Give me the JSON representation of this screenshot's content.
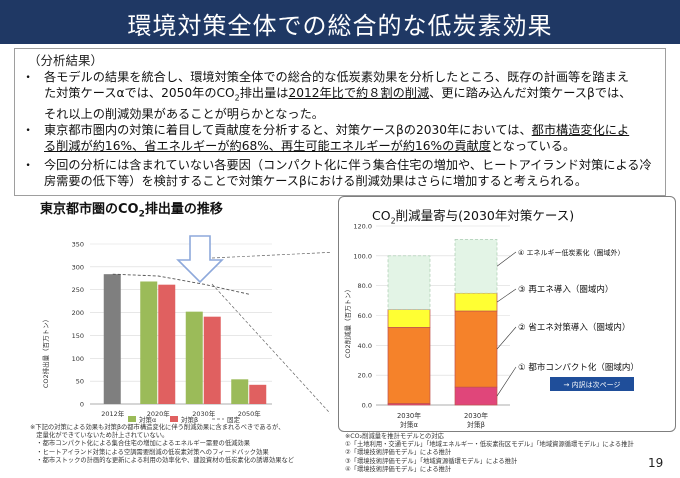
{
  "header": {
    "title": "環境対策全体での総合的な低炭素効果"
  },
  "summary": {
    "label": "（分析結果）",
    "bullet_symbol": "・",
    "b1": {
      "l1": "各モデルの結果を統合し、環境対策全体での総合的な低炭素効果を分析したところ、既存の計画等を踏まえ",
      "l2a": "た対策ケースαでは、2050年のCO",
      "l2sub": "2",
      "l2b": "排出量は",
      "l2ul": "2012年比で約８割の削減",
      "l2c": "、更に踏み込んだ対策ケースβでは、",
      "l3": "それ以上の削減効果があることが明らかとなった。"
    },
    "b2": {
      "l1a": "東京都市圏内の対策に着目して貢献度を分析すると、対策ケースβの2030年においては、",
      "l1ul": "都市構造変化によ",
      "l2ul": "る削減が約16%、省エネルギーが約68%、再生可能エネルギーが約16%の貢献度",
      "l2b": "となっている。"
    },
    "b3": {
      "l1": "今回の分析には含まれていない各要因（コンパクト化に伴う集合住宅の増加や、ヒートアイランド対策による冷",
      "l2": "房需要の低下等）を検討することで対策ケースβにおける削減効果はさらに増加すると考えられる。"
    }
  },
  "left_chart": {
    "title_a": "東京都市圏のCO",
    "title_sub": "2",
    "title_b": "排出量の推移",
    "ylabel": "CO2排出量（百万トン）",
    "legend": [
      "対策α",
      "対策β",
      "固定"
    ]
  },
  "right_chart": {
    "title_a": "CO",
    "title_sub": "2",
    "title_b": "削減量寄与(2030年対策ケース)",
    "ylabel": "CO2削減量（百万トン）",
    "cat1_line1": "2030年",
    "cat1_line2": "対策α",
    "cat2_line1": "2030年",
    "cat2_line2": "対策β",
    "annotations": [
      "④ エネルギー低炭素化（圏域外）",
      "③  再エネ導入（圏域内）",
      "②  省エネ対策導入（圏域内）",
      "①  都市コンパクト化（圏域内）"
    ],
    "detail_button": "→ 内訳は次ページ"
  },
  "chart_data": [
    {
      "type": "bar",
      "title": "東京都市圏のCO2排出量の推移",
      "ylabel": "CO2排出量（百万トン）",
      "ylim": [
        0,
        350
      ],
      "yticks": [
        0,
        50,
        100,
        150,
        200,
        250,
        300,
        350
      ],
      "categories": [
        "2012年",
        "2020年",
        "2030年",
        "2050年"
      ],
      "series": [
        {
          "name": "",
          "color": "#7f7f7f",
          "values": [
            284,
            null,
            null,
            null
          ]
        },
        {
          "name": "対策α",
          "color": "#9bbb59",
          "values": [
            null,
            268,
            202,
            54
          ]
        },
        {
          "name": "対策β",
          "color": "#e06060",
          "values": [
            null,
            261,
            191,
            42
          ]
        },
        {
          "name": "固定",
          "color": "#7f7f7f",
          "values": [
            284,
            280,
            262,
            240
          ],
          "style": "dashed-line"
        }
      ],
      "grid": true,
      "legend": "bottom"
    },
    {
      "type": "bar",
      "stacked": true,
      "title": "CO2削減量寄与(2030年対策ケース)",
      "ylabel": "CO2削減量（百万トン）",
      "ylim": [
        0,
        120
      ],
      "yticks": [
        "0.0",
        "20.0",
        "40.0",
        "60.0",
        "80.0",
        "100.0",
        "120.0"
      ],
      "categories": [
        "2030年 対策α",
        "2030年 対策β"
      ],
      "series": [
        {
          "name": "① 都市コンパクト化（圏域内）",
          "color": "#e0467a",
          "values": [
            1,
            12
          ]
        },
        {
          "name": "② 省エネ対策導入（圏域内）",
          "color": "#f5822a",
          "values": [
            51,
            51
          ]
        },
        {
          "name": "③ 再エネ導入（圏域内）",
          "color": "#ffff33",
          "values": [
            12,
            12
          ]
        },
        {
          "name": "④ エネルギー低炭素化（圏域外）",
          "color": "#e3f4e6",
          "values": [
            36,
            36
          ]
        }
      ],
      "grid": true
    }
  ],
  "notes_left": [
    "※下記の対策による効果も対策βの都市構造変化に伴う削減効果に含まれるべきであるが、",
    "　定量化ができていないため計上されていない。",
    "　・都市コンパクト化による集合住宅の増加によるエネルギー需要の低減効果",
    "　・ヒートアイランド対策による空調需要削減の低炭素対策へのフィードバック効果",
    "　・都市ストックの計画的な更新による利用の効率化や、建設資材の低炭素化の誘導効果など"
  ],
  "notes_right": [
    "※CO₂削減量を推計モデルとの対応",
    "①「土地利用・交通モデル」「地域エネルギー・低炭素街区モデル」「地域資源循環モデル」による推計",
    "②「環境技術評価モデル」による推計",
    "③「環境技術評価モデル」「地域資源循環モデル」による推計",
    "④「環境技術評価モデル」による推計"
  ],
  "page_number": "19"
}
